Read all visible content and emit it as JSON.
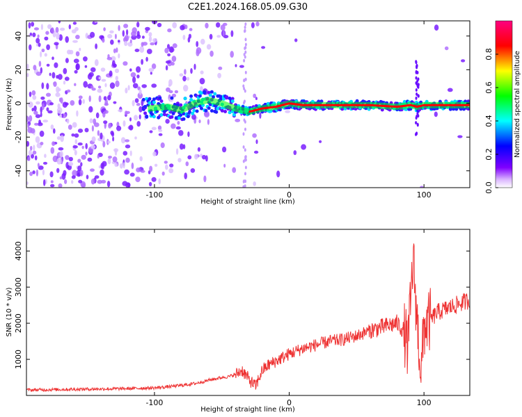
{
  "title": "C2E1.2024.168.05.09.G30",
  "chart_data": [
    {
      "type": "heatmap",
      "xlabel": "Height of straight line (km)",
      "ylabel": "Frequency (Hz)",
      "xlim": [
        -195,
        134
      ],
      "ylim": [
        -50,
        49
      ],
      "xticks": [
        -100,
        0,
        100
      ],
      "yticks": [
        -40,
        -20,
        0,
        20,
        40
      ],
      "grid": false,
      "colorbar": {
        "label": "Normalized spectral amplitude",
        "range": [
          0,
          1
        ],
        "ticks": [
          0.0,
          0.2,
          0.4,
          0.6,
          0.8
        ],
        "colormap": [
          "#ffffff",
          "#d9b3ff",
          "#8000ff",
          "#0000ff",
          "#00ffff",
          "#00ff00",
          "#ffff00",
          "#ff0000",
          "#ff0080"
        ]
      },
      "ridge": {
        "x": [
          -105,
          -90,
          -80,
          -70,
          -60,
          -50,
          -40,
          -30,
          -20,
          -10,
          0,
          10,
          20,
          40,
          60,
          80,
          90,
          95,
          100,
          110,
          120,
          134
        ],
        "y": [
          -3,
          -2,
          -4,
          0,
          2,
          0,
          -3,
          -5,
          -3,
          -2,
          0,
          -1,
          -1,
          -1,
          -1,
          -2,
          -1,
          -2,
          -1,
          -1,
          -1,
          -1
        ]
      },
      "vertical_streaks_x": [
        -33,
        95
      ]
    },
    {
      "type": "line",
      "xlabel": "Height of straight line (km)",
      "ylabel": "SNR (10 * v/v)",
      "xlim": [
        -195,
        134
      ],
      "ylim": [
        0,
        4600
      ],
      "xticks": [
        -100,
        0,
        100
      ],
      "yticks": [
        1000,
        2000,
        3000,
        4000
      ],
      "grid": false,
      "series": [
        {
          "color": "#ee3333",
          "x": [
            -195,
            -180,
            -160,
            -140,
            -120,
            -100,
            -90,
            -80,
            -70,
            -60,
            -50,
            -45,
            -40,
            -35,
            -30,
            -25,
            -20,
            -15,
            -10,
            -5,
            0,
            10,
            20,
            30,
            40,
            50,
            60,
            70,
            80,
            85,
            88,
            90,
            92,
            95,
            98,
            100,
            105,
            110,
            120,
            134
          ],
          "y": [
            150,
            160,
            170,
            180,
            190,
            210,
            240,
            280,
            330,
            420,
            500,
            520,
            580,
            700,
            450,
            250,
            700,
            850,
            950,
            1050,
            1150,
            1300,
            1400,
            1500,
            1550,
            1650,
            1800,
            1900,
            2000,
            1800,
            1300,
            2500,
            3800,
            2000,
            600,
            1900,
            2100,
            2300,
            2450,
            2650
          ]
        }
      ]
    }
  ]
}
